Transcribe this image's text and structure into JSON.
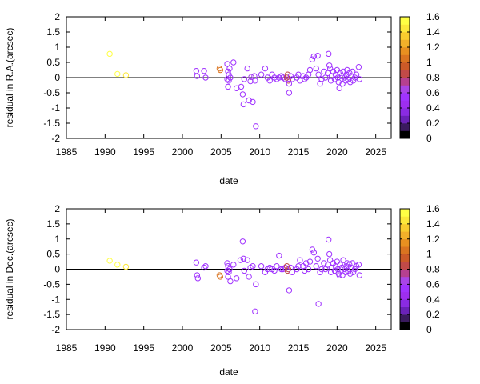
{
  "palette": {
    "axis": "#000000",
    "bands": [
      "#000000",
      "#3a1a5e",
      "#6a22b8",
      "#8a2be2",
      "#9d2ef0",
      "#a033ff",
      "#a945e6",
      "#b64090",
      "#c14a48",
      "#cc5a28",
      "#da7420",
      "#e89020",
      "#f2b02a",
      "#f8cc2e",
      "#fce83a",
      "#ffff44"
    ]
  },
  "chart_data": [
    {
      "type": "scatter",
      "xlabel": "date",
      "ylabel": "residual in R.A.(arcsec)",
      "xlim": [
        1985,
        2027
      ],
      "ylim": [
        -2,
        2
      ],
      "xticks": [
        "1985",
        "1990",
        "1995",
        "2000",
        "2005",
        "2010",
        "2015",
        "2020",
        "2025"
      ],
      "yticks": [
        "-2",
        "-1.5",
        "-1",
        "-0.5",
        "0",
        "0.5",
        "1",
        "1.5",
        "2"
      ],
      "colorbar": {
        "range": [
          0,
          1.6
        ],
        "ticks": [
          "0",
          "0.2",
          "0.4",
          "0.6",
          "0.8",
          "1",
          "1.2",
          "1.4",
          "1.6"
        ]
      },
      "points": [
        [
          1990.6,
          0.78,
          1.5
        ],
        [
          1991.6,
          0.12,
          1.5
        ],
        [
          1992.7,
          0.08,
          1.45
        ],
        [
          2001.8,
          0.22,
          0.5
        ],
        [
          2001.9,
          0.05,
          0.5
        ],
        [
          2002.8,
          0.22,
          0.5
        ],
        [
          2003.0,
          0.0,
          0.5
        ],
        [
          2004.8,
          0.3,
          1.0
        ],
        [
          2004.9,
          0.25,
          1.0
        ],
        [
          2005.8,
          0.45,
          0.5
        ],
        [
          2005.9,
          0.2,
          0.5
        ],
        [
          2006.0,
          -0.1,
          0.5
        ],
        [
          2005.9,
          -0.3,
          0.5
        ],
        [
          2006.1,
          0.3,
          0.5
        ],
        [
          2006.2,
          0.0,
          0.5
        ],
        [
          2005.8,
          -0.05,
          0.5
        ],
        [
          2006.0,
          0.1,
          0.5
        ],
        [
          2006.6,
          0.5,
          0.5
        ],
        [
          2007.0,
          -0.35,
          0.5
        ],
        [
          2007.6,
          -0.3,
          0.5
        ],
        [
          2007.8,
          -0.55,
          0.5
        ],
        [
          2007.9,
          -0.88,
          0.5
        ],
        [
          2008.0,
          -0.05,
          0.5
        ],
        [
          2008.4,
          0.3,
          0.5
        ],
        [
          2008.6,
          -0.75,
          0.5
        ],
        [
          2008.8,
          -0.12,
          0.6
        ],
        [
          2008.9,
          0.02,
          0.7
        ],
        [
          2009.1,
          -0.8,
          0.5
        ],
        [
          2009.3,
          0.05,
          0.5
        ],
        [
          2009.4,
          -0.1,
          0.5
        ],
        [
          2009.5,
          -1.6,
          0.5
        ],
        [
          2010.2,
          0.1,
          0.5
        ],
        [
          2010.7,
          0.3,
          0.5
        ],
        [
          2011.0,
          0.0,
          0.5
        ],
        [
          2011.3,
          -0.1,
          0.5
        ],
        [
          2011.6,
          0.1,
          0.5
        ],
        [
          2011.9,
          0.0,
          0.5
        ],
        [
          2012.2,
          -0.05,
          0.5
        ],
        [
          2012.5,
          0.0,
          0.5
        ],
        [
          2012.8,
          0.05,
          0.5
        ],
        [
          2013.0,
          0.0,
          0.6
        ],
        [
          2013.3,
          -0.05,
          0.6
        ],
        [
          2013.5,
          0.0,
          0.8
        ],
        [
          2013.6,
          0.1,
          0.8
        ],
        [
          2013.7,
          -0.1,
          0.8
        ],
        [
          2013.8,
          -0.2,
          0.6
        ],
        [
          2013.8,
          -0.5,
          0.5
        ],
        [
          2014.0,
          0.05,
          0.5
        ],
        [
          2014.2,
          -0.05,
          0.6
        ],
        [
          2014.8,
          0.0,
          0.5
        ],
        [
          2015.0,
          0.1,
          0.5
        ],
        [
          2015.2,
          -0.1,
          0.5
        ],
        [
          2015.6,
          0.05,
          0.5
        ],
        [
          2015.8,
          -0.05,
          0.5
        ],
        [
          2016.0,
          0.0,
          0.6
        ],
        [
          2016.3,
          0.1,
          0.5
        ],
        [
          2016.5,
          0.25,
          0.5
        ],
        [
          2016.8,
          0.6,
          0.5
        ],
        [
          2017.0,
          0.7,
          0.5
        ],
        [
          2017.5,
          0.72,
          0.5
        ],
        [
          2017.3,
          0.3,
          0.5
        ],
        [
          2017.6,
          0.1,
          0.5
        ],
        [
          2017.8,
          -0.2,
          0.5
        ],
        [
          2018.0,
          -0.05,
          0.5
        ],
        [
          2018.3,
          0.2,
          0.5
        ],
        [
          2018.5,
          0.0,
          0.5
        ],
        [
          2018.8,
          0.15,
          0.5
        ],
        [
          2018.9,
          0.78,
          0.5
        ],
        [
          2019.0,
          0.4,
          0.5
        ],
        [
          2019.1,
          0.3,
          0.5
        ],
        [
          2019.2,
          -0.1,
          0.5
        ],
        [
          2019.3,
          0.05,
          0.5
        ],
        [
          2019.5,
          0.2,
          0.5
        ],
        [
          2019.7,
          -0.05,
          0.5
        ],
        [
          2019.8,
          0.1,
          0.5
        ],
        [
          2020.0,
          0.25,
          0.5
        ],
        [
          2020.1,
          0.0,
          0.5
        ],
        [
          2020.2,
          -0.15,
          0.5
        ],
        [
          2020.3,
          -0.35,
          0.5
        ],
        [
          2020.4,
          0.15,
          0.5
        ],
        [
          2020.6,
          0.05,
          0.5
        ],
        [
          2020.7,
          -0.2,
          0.5
        ],
        [
          2020.8,
          0.2,
          0.5
        ],
        [
          2021.0,
          0.0,
          0.5
        ],
        [
          2021.1,
          -0.1,
          0.5
        ],
        [
          2021.2,
          0.1,
          0.5
        ],
        [
          2021.3,
          0.25,
          0.5
        ],
        [
          2021.4,
          -0.05,
          0.5
        ],
        [
          2021.6,
          0.15,
          0.5
        ],
        [
          2021.7,
          -0.15,
          0.5
        ],
        [
          2021.8,
          0.05,
          0.5
        ],
        [
          2022.0,
          0.2,
          0.5
        ],
        [
          2022.1,
          -0.1,
          0.5
        ],
        [
          2022.3,
          0.0,
          0.5
        ],
        [
          2022.5,
          0.1,
          0.5
        ],
        [
          2022.8,
          0.35,
          0.5
        ],
        [
          2022.9,
          -0.05,
          0.5
        ]
      ]
    },
    {
      "type": "scatter",
      "xlabel": "date",
      "ylabel": "residual in Dec.(arcsec)",
      "xlim": [
        1985,
        2027
      ],
      "ylim": [
        -2,
        2
      ],
      "xticks": [
        "1985",
        "1990",
        "1995",
        "2000",
        "2005",
        "2010",
        "2015",
        "2020",
        "2025"
      ],
      "yticks": [
        "-2",
        "-1.5",
        "-1",
        "-0.5",
        "0",
        "0.5",
        "1",
        "1.5",
        "2"
      ],
      "colorbar": {
        "range": [
          0,
          1.6
        ],
        "ticks": [
          "0",
          "0.2",
          "0.4",
          "0.6",
          "0.8",
          "1",
          "1.2",
          "1.4",
          "1.6"
        ]
      },
      "points": [
        [
          1990.6,
          0.28,
          1.5
        ],
        [
          1991.6,
          0.15,
          1.5
        ],
        [
          1992.7,
          0.08,
          1.45
        ],
        [
          2001.8,
          0.22,
          0.5
        ],
        [
          2001.9,
          -0.2,
          0.5
        ],
        [
          2002.0,
          -0.3,
          0.5
        ],
        [
          2002.8,
          0.05,
          0.5
        ],
        [
          2003.0,
          0.1,
          0.5
        ],
        [
          2004.8,
          -0.2,
          1.0
        ],
        [
          2004.9,
          -0.25,
          1.0
        ],
        [
          2005.8,
          0.2,
          0.5
        ],
        [
          2005.9,
          0.1,
          0.5
        ],
        [
          2006.0,
          -0.1,
          0.5
        ],
        [
          2005.9,
          -0.25,
          0.5
        ],
        [
          2006.1,
          0.0,
          0.5
        ],
        [
          2006.2,
          -0.4,
          0.5
        ],
        [
          2005.8,
          -0.05,
          0.5
        ],
        [
          2006.6,
          0.15,
          0.5
        ],
        [
          2007.0,
          -0.3,
          0.5
        ],
        [
          2007.5,
          0.3,
          0.5
        ],
        [
          2007.8,
          0.92,
          0.5
        ],
        [
          2007.9,
          0.35,
          0.5
        ],
        [
          2008.0,
          -0.05,
          0.5
        ],
        [
          2008.4,
          0.3,
          0.5
        ],
        [
          2008.6,
          -0.25,
          0.5
        ],
        [
          2008.8,
          0.05,
          0.5
        ],
        [
          2009.1,
          0.1,
          0.5
        ],
        [
          2009.4,
          -1.4,
          0.5
        ],
        [
          2009.5,
          -0.5,
          0.5
        ],
        [
          2010.2,
          0.1,
          0.5
        ],
        [
          2010.7,
          -0.1,
          0.5
        ],
        [
          2011.0,
          0.0,
          0.5
        ],
        [
          2011.3,
          0.05,
          0.5
        ],
        [
          2011.6,
          0.0,
          0.5
        ],
        [
          2011.9,
          -0.05,
          0.5
        ],
        [
          2012.2,
          0.1,
          0.5
        ],
        [
          2012.5,
          0.45,
          0.5
        ],
        [
          2012.8,
          0.0,
          0.5
        ],
        [
          2013.0,
          0.0,
          0.6
        ],
        [
          2013.3,
          0.05,
          0.6
        ],
        [
          2013.5,
          0.1,
          0.8
        ],
        [
          2013.6,
          -0.05,
          0.8
        ],
        [
          2013.7,
          0.0,
          0.8
        ],
        [
          2013.8,
          -0.7,
          0.5
        ],
        [
          2014.0,
          0.05,
          0.5
        ],
        [
          2014.2,
          -0.1,
          0.6
        ],
        [
          2014.8,
          0.0,
          0.5
        ],
        [
          2015.0,
          0.1,
          0.5
        ],
        [
          2015.2,
          0.3,
          0.5
        ],
        [
          2015.6,
          0.1,
          0.5
        ],
        [
          2015.8,
          -0.05,
          0.5
        ],
        [
          2016.0,
          0.2,
          0.6
        ],
        [
          2016.3,
          0.0,
          0.5
        ],
        [
          2016.5,
          0.25,
          0.5
        ],
        [
          2016.8,
          0.65,
          0.5
        ],
        [
          2017.0,
          0.55,
          0.5
        ],
        [
          2017.5,
          0.35,
          0.5
        ],
        [
          2017.3,
          0.1,
          0.5
        ],
        [
          2017.6,
          -1.15,
          0.5
        ],
        [
          2017.8,
          -0.1,
          0.5
        ],
        [
          2018.0,
          0.0,
          0.5
        ],
        [
          2018.3,
          0.2,
          0.5
        ],
        [
          2018.5,
          0.0,
          0.5
        ],
        [
          2018.8,
          0.15,
          0.5
        ],
        [
          2018.9,
          0.98,
          0.5
        ],
        [
          2019.0,
          0.5,
          0.5
        ],
        [
          2019.1,
          0.3,
          0.5
        ],
        [
          2019.2,
          -0.1,
          0.5
        ],
        [
          2019.3,
          0.05,
          0.5
        ],
        [
          2019.5,
          0.2,
          0.5
        ],
        [
          2019.7,
          -0.05,
          0.5
        ],
        [
          2019.8,
          0.1,
          0.5
        ],
        [
          2020.0,
          0.25,
          0.5
        ],
        [
          2020.1,
          0.0,
          0.5
        ],
        [
          2020.2,
          -0.15,
          0.5
        ],
        [
          2020.3,
          -0.2,
          0.5
        ],
        [
          2020.4,
          0.15,
          0.5
        ],
        [
          2020.6,
          0.05,
          0.5
        ],
        [
          2020.7,
          -0.2,
          0.5
        ],
        [
          2020.8,
          0.3,
          0.5
        ],
        [
          2021.0,
          0.0,
          0.5
        ],
        [
          2021.1,
          -0.1,
          0.5
        ],
        [
          2021.2,
          0.1,
          0.5
        ],
        [
          2021.3,
          0.2,
          0.5
        ],
        [
          2021.4,
          -0.05,
          0.5
        ],
        [
          2021.6,
          0.15,
          0.5
        ],
        [
          2021.7,
          -0.15,
          0.5
        ],
        [
          2021.8,
          0.05,
          0.5
        ],
        [
          2022.0,
          0.2,
          0.5
        ],
        [
          2022.1,
          -0.1,
          0.5
        ],
        [
          2022.3,
          0.0,
          0.5
        ],
        [
          2022.5,
          0.1,
          0.5
        ],
        [
          2022.8,
          0.15,
          0.5
        ],
        [
          2022.9,
          -0.2,
          0.5
        ]
      ]
    }
  ]
}
